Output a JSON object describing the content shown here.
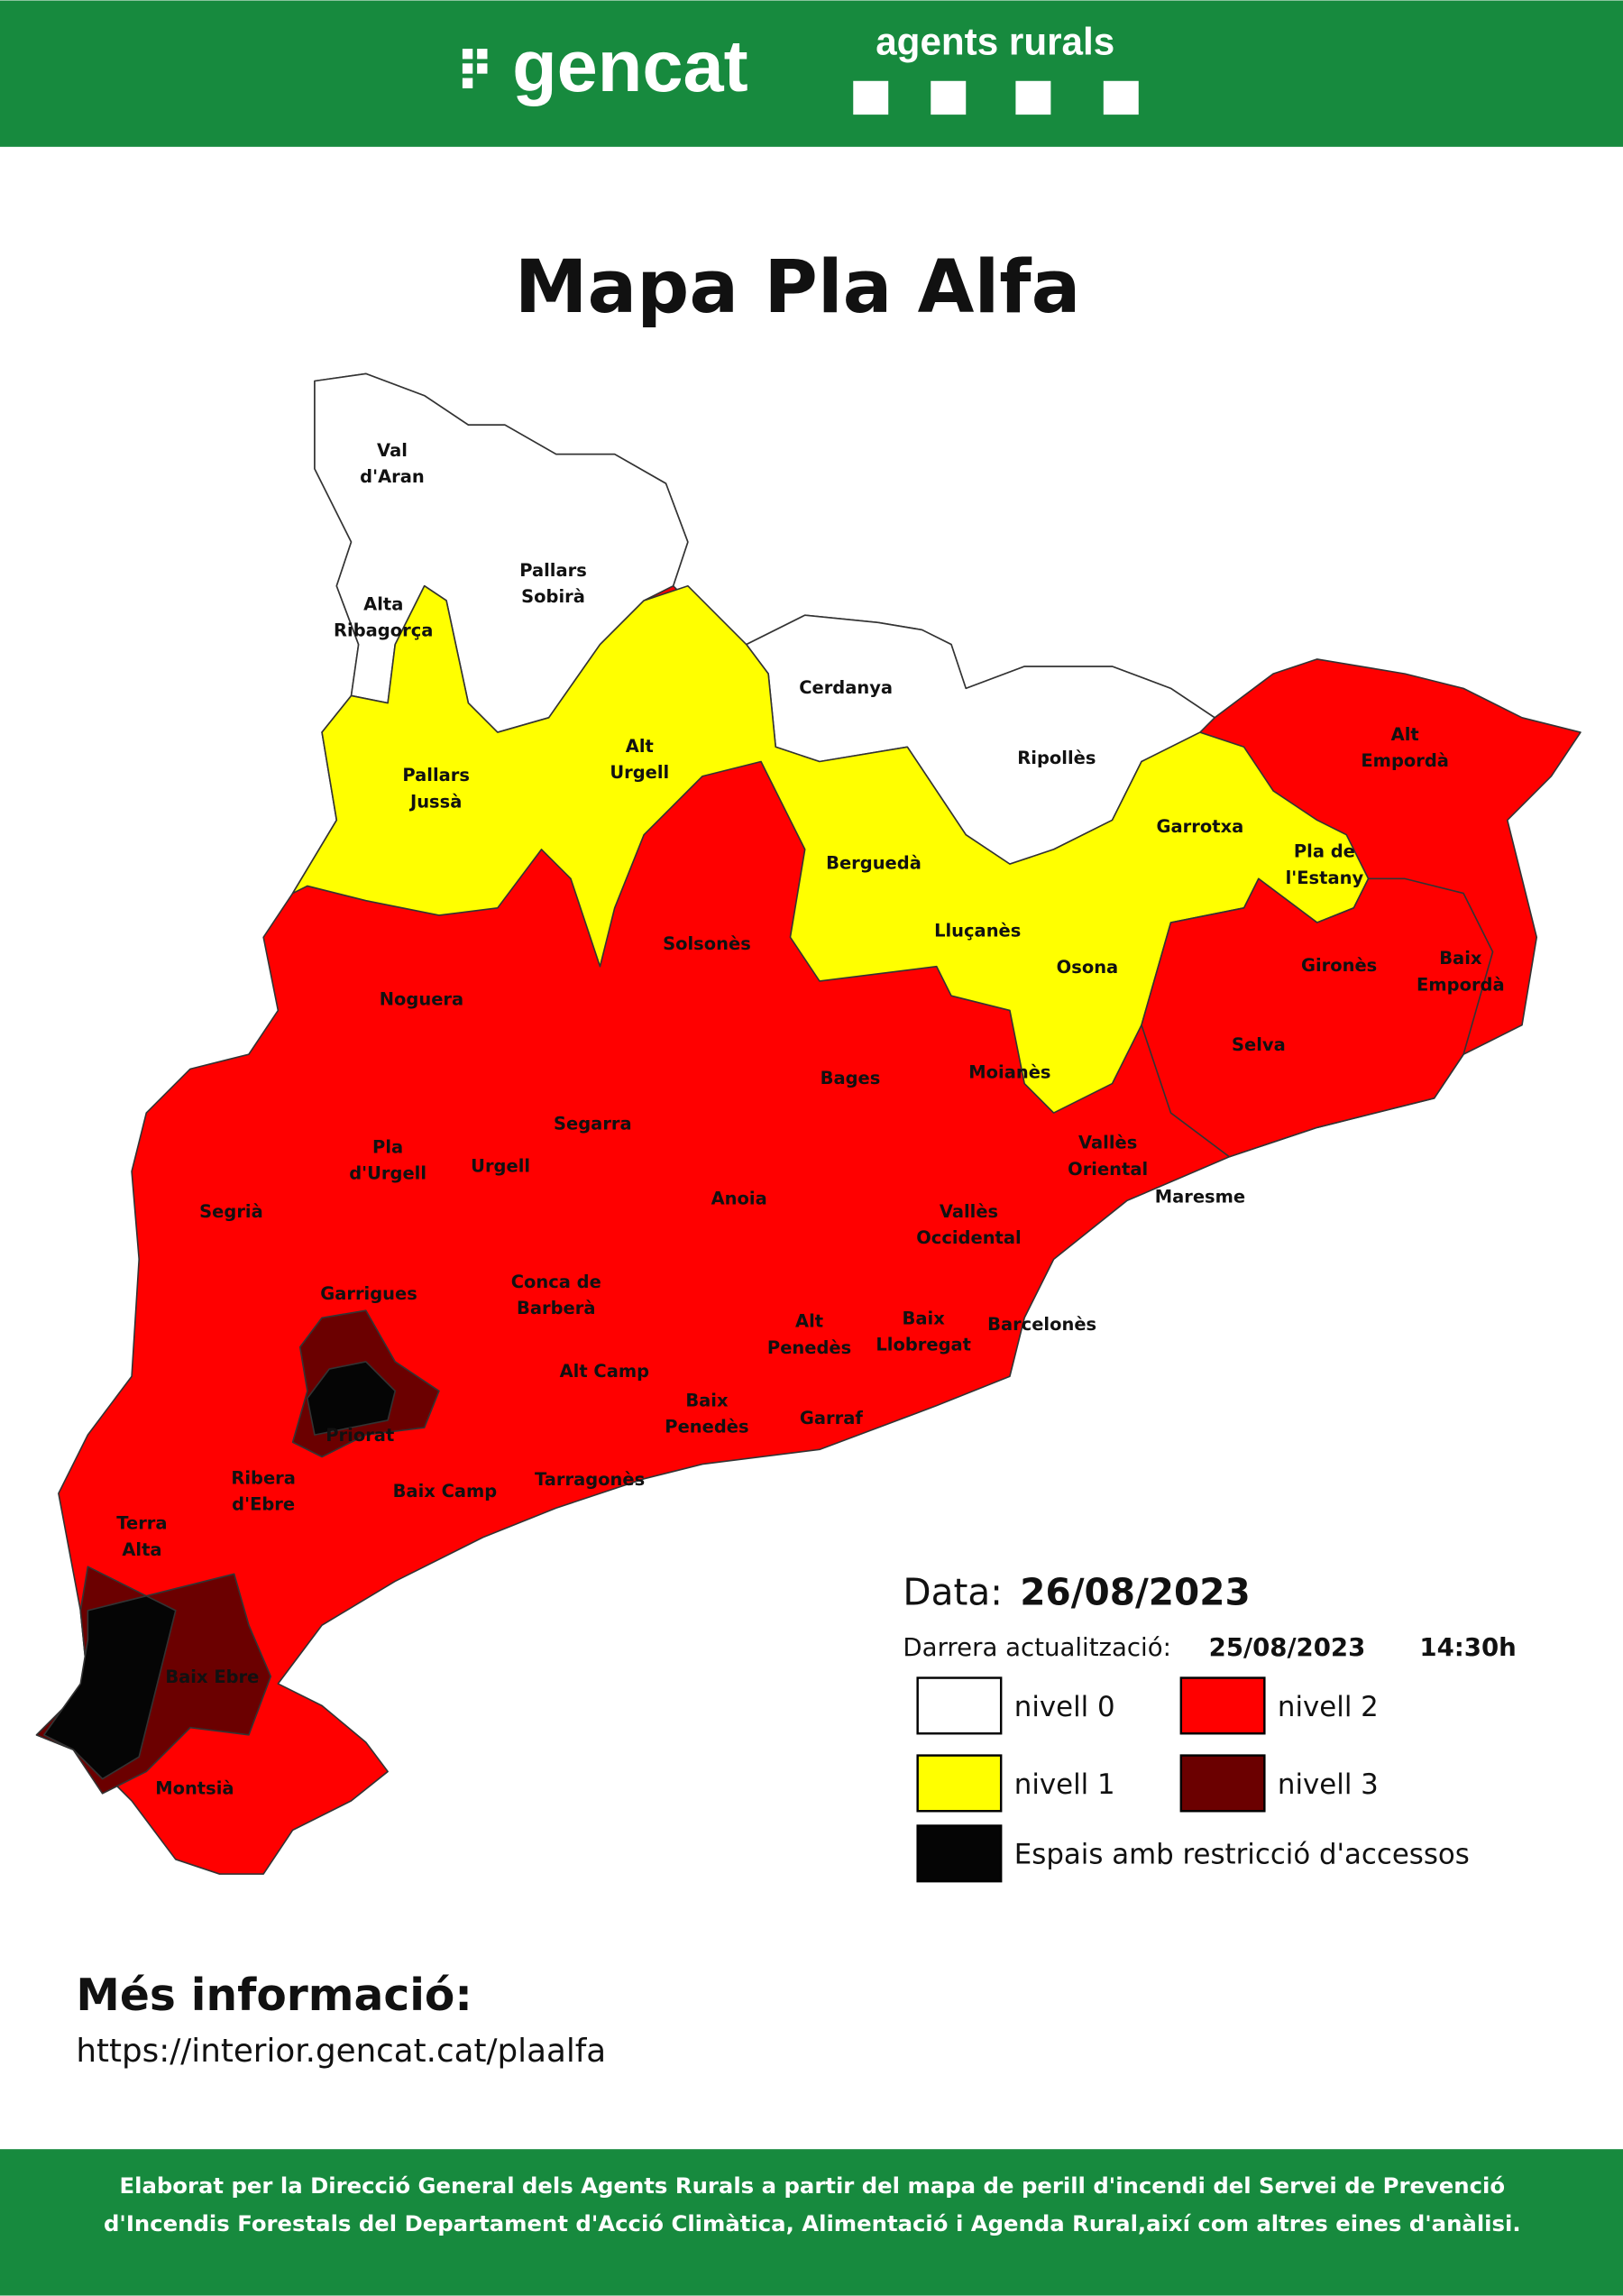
{
  "header": {
    "logo": "gencat",
    "brand": "agents rurals"
  },
  "title": "Mapa Pla Alfa",
  "map": {
    "regions": [
      {
        "label": [
          "Val",
          "d'Aran"
        ]
      },
      {
        "label": [
          "Pallars",
          "Sobirà"
        ]
      },
      {
        "label": [
          "Alta",
          "Ribagorça"
        ]
      },
      {
        "label": [
          "Cerdanya"
        ]
      },
      {
        "label": [
          "Ripollès"
        ]
      },
      {
        "label": [
          "Alt",
          "Empordà"
        ]
      },
      {
        "label": [
          "Pallars",
          "Jussà"
        ]
      },
      {
        "label": [
          "Alt",
          "Urgell"
        ]
      },
      {
        "label": [
          "Berguedà"
        ]
      },
      {
        "label": [
          "Garrotxa"
        ]
      },
      {
        "label": [
          "Pla de",
          "l'Estany"
        ]
      },
      {
        "label": [
          "Solsonès"
        ]
      },
      {
        "label": [
          "Lluçanès"
        ]
      },
      {
        "label": [
          "Osona"
        ]
      },
      {
        "label": [
          "Gironès"
        ]
      },
      {
        "label": [
          "Baix",
          "Empordà"
        ]
      },
      {
        "label": [
          "Noguera"
        ]
      },
      {
        "label": [
          "Bages"
        ]
      },
      {
        "label": [
          "Moianès"
        ]
      },
      {
        "label": [
          "Selva"
        ]
      },
      {
        "label": [
          "Segarra"
        ]
      },
      {
        "label": [
          "Pla",
          "d'Urgell"
        ]
      },
      {
        "label": [
          "Urgell"
        ]
      },
      {
        "label": [
          "Vallès",
          "Oriental"
        ]
      },
      {
        "label": [
          "Maresme"
        ]
      },
      {
        "label": [
          "Segrià"
        ]
      },
      {
        "label": [
          "Anoia"
        ]
      },
      {
        "label": [
          "Vallès",
          "Occidental"
        ]
      },
      {
        "label": [
          "Garrigues"
        ]
      },
      {
        "label": [
          "Conca de",
          "Barberà"
        ]
      },
      {
        "label": [
          "Alt",
          "Penedès"
        ]
      },
      {
        "label": [
          "Baix",
          "Llobregat"
        ]
      },
      {
        "label": [
          "Barcelonès"
        ]
      },
      {
        "label": [
          "Alt Camp"
        ]
      },
      {
        "label": [
          "Baix",
          "Penedès"
        ]
      },
      {
        "label": [
          "Garraf"
        ]
      },
      {
        "label": [
          "Priorat"
        ]
      },
      {
        "label": [
          "Ribera",
          "d'Ebre"
        ]
      },
      {
        "label": [
          "Baix Camp"
        ]
      },
      {
        "label": [
          "Tarragonès"
        ]
      },
      {
        "label": [
          "Terra",
          "Alta"
        ]
      },
      {
        "label": [
          "Baix Ebre"
        ]
      },
      {
        "label": [
          "Montsià"
        ]
      }
    ]
  },
  "legend": {
    "date_label": "Data:",
    "date": "26/08/2023",
    "update_label": "Darrera actualització:",
    "update_date": "25/08/2023",
    "update_time": "14:30h",
    "items": [
      {
        "color": "#ffffff",
        "label": "nivell 0"
      },
      {
        "color": "#ffff00",
        "label": "nivell 1"
      },
      {
        "color": "#ff0000",
        "label": "nivell 2"
      },
      {
        "color": "#6b0000",
        "label": "nivell 3"
      },
      {
        "color": "#050505",
        "label": "Espais amb restricció d'accessos"
      }
    ]
  },
  "more_info": {
    "title": "Més informació:",
    "url": "https://interior.gencat.cat/plaalfa"
  },
  "footer": [
    "Elaborat per la Direcció General dels Agents Rurals a partir del mapa de perill d'incendi del Servei de Prevenció",
    "d'Incendis Forestals del Departament d'Acció Climàtica, Alimentació i Agenda Rural,així com altres eines d'anàlisi."
  ]
}
